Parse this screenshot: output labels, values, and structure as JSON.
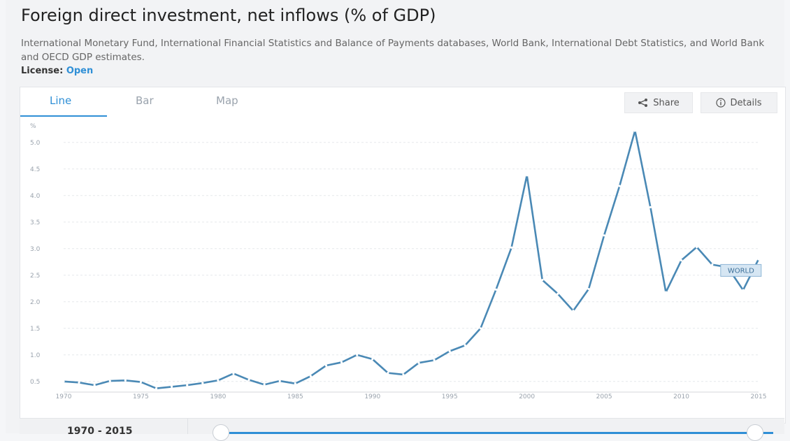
{
  "page": {
    "title": "Foreign direct investment, net inflows (% of GDP)",
    "source": "International Monetary Fund, International Financial Statistics and Balance of Payments databases, World Bank, International Debt Statistics, and World Bank and OECD GDP estimates.",
    "license_label": "License:",
    "license_value": "Open"
  },
  "tabs": [
    {
      "label": "Line"
    },
    {
      "label": "Bar"
    },
    {
      "label": "Map"
    }
  ],
  "actions": {
    "share_label": "Share",
    "details_label": "Details"
  },
  "range": {
    "label": "1970 - 2015"
  },
  "colors": {
    "accent": "#2f8fd6",
    "line": "#4a89b5",
    "grid": "#e6e8eb"
  },
  "chart_data": {
    "type": "line",
    "ylabel": "%",
    "ylim": [
      0.3,
      5.3
    ],
    "yticks": [
      "5.0",
      "4.5",
      "4.0",
      "3.5",
      "3.0",
      "2.5",
      "2.0",
      "1.5",
      "1.0",
      "0.5"
    ],
    "xticks": [
      "1970",
      "1975",
      "1980",
      "1985",
      "1990",
      "1995",
      "2000",
      "2005",
      "2010",
      "2015"
    ],
    "xlim": [
      1970,
      2015
    ],
    "series": [
      {
        "name": "WORLD",
        "x": [
          1970,
          1971,
          1972,
          1973,
          1974,
          1975,
          1976,
          1977,
          1978,
          1979,
          1980,
          1981,
          1982,
          1983,
          1984,
          1985,
          1986,
          1987,
          1988,
          1989,
          1990,
          1991,
          1992,
          1993,
          1994,
          1995,
          1996,
          1997,
          1998,
          1999,
          2000,
          2001,
          2002,
          2003,
          2004,
          2005,
          2006,
          2007,
          2008,
          2009,
          2010,
          2011,
          2012,
          2013,
          2014,
          2015
        ],
        "values": [
          0.5,
          0.48,
          0.43,
          0.51,
          0.52,
          0.49,
          0.37,
          0.4,
          0.43,
          0.47,
          0.52,
          0.65,
          0.53,
          0.44,
          0.51,
          0.46,
          0.6,
          0.8,
          0.86,
          1.0,
          0.92,
          0.66,
          0.63,
          0.85,
          0.9,
          1.07,
          1.18,
          1.5,
          2.23,
          3.02,
          4.38,
          2.41,
          2.15,
          1.83,
          2.24,
          3.25,
          4.18,
          5.22,
          3.78,
          2.18,
          2.78,
          3.03,
          2.7,
          2.65,
          2.22,
          2.8
        ]
      }
    ]
  }
}
